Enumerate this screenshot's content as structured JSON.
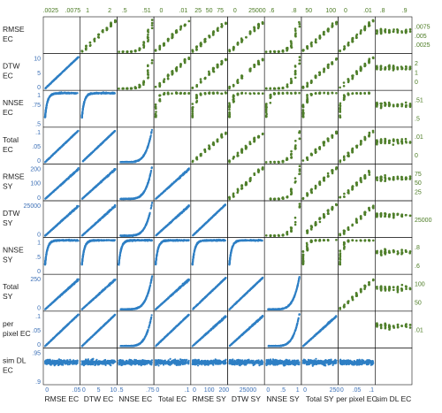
{
  "colors": {
    "lower": "#2e7fc4",
    "upper": "#4f7f2a",
    "diagonal": "#ffffff",
    "frame": "#111111"
  },
  "chart_data": {
    "type": "scatter-matrix",
    "variables": [
      {
        "key": "rmse_ec",
        "row_label": [
          "RMSE",
          "EC"
        ],
        "col_label": "RMSE EC"
      },
      {
        "key": "dtw_ec",
        "row_label": [
          "DTW",
          "EC"
        ],
        "col_label": "DTW EC"
      },
      {
        "key": "nnse_ec",
        "row_label": [
          "NNSE",
          "EC"
        ],
        "col_label": "NNSE EC"
      },
      {
        "key": "total_ec",
        "row_label": [
          "Total",
          "EC"
        ],
        "col_label": "Total EC"
      },
      {
        "key": "rmse_sy",
        "row_label": [
          "RMSE",
          "SY"
        ],
        "col_label": "RMSE SY"
      },
      {
        "key": "dtw_sy",
        "row_label": [
          "DTW",
          "SY"
        ],
        "col_label": "DTW SY"
      },
      {
        "key": "nnse_sy",
        "row_label": [
          "NNSE",
          "SY"
        ],
        "col_label": "NNSE SY"
      },
      {
        "key": "total_sy",
        "row_label": [
          "Total",
          "SY"
        ],
        "col_label": "Total SY"
      },
      {
        "key": "ppx_ec",
        "row_label": [
          "per",
          "pixel EC"
        ],
        "col_label": "per pixel EC"
      },
      {
        "key": "simdl_ec",
        "row_label": [
          "sim DL",
          "EC"
        ],
        "col_label": "sim DL EC"
      }
    ],
    "ranges": {
      "rmse_ec": [
        0,
        0.1
      ],
      "dtw_ec": [
        0,
        11
      ],
      "nnse_ec": [
        0.5,
        1.02
      ],
      "total_ec": [
        0,
        0.11
      ],
      "rmse_sy": [
        0,
        250
      ],
      "dtw_sy": [
        0,
        38000
      ],
      "nnse_sy": [
        0,
        1.05
      ],
      "total_sy": [
        0,
        320
      ],
      "ppx_ec": [
        0,
        0.1
      ],
      "simdl_ec": [
        0.88,
        1.0
      ]
    },
    "top_ticks": [
      {
        "col": 0,
        "labels": [
          ".0025",
          ".0075"
        ]
      },
      {
        "col": 1,
        "labels": [
          "1",
          "2"
        ]
      },
      {
        "col": 2,
        "labels": [
          ".5",
          ".51"
        ]
      },
      {
        "col": 3,
        "labels": [
          "0",
          ".01"
        ]
      },
      {
        "col": 4,
        "labels": [
          "25",
          "50",
          "75"
        ]
      },
      {
        "col": 5,
        "labels": [
          "0",
          "25000"
        ]
      },
      {
        "col": 6,
        "labels": [
          ".6",
          ".8"
        ]
      },
      {
        "col": 7,
        "labels": [
          "50",
          "100"
        ]
      },
      {
        "col": 8,
        "labels": [
          "0",
          ".01"
        ]
      },
      {
        "col": 9,
        "labels": [
          ".8",
          ".9"
        ]
      }
    ],
    "right_ticks": [
      {
        "row": 0,
        "labels": [
          ".0075",
          ".005",
          ".0025"
        ]
      },
      {
        "row": 1,
        "labels": [
          "2",
          "1",
          "0"
        ]
      },
      {
        "row": 2,
        "labels": [
          ".51",
          ".5"
        ]
      },
      {
        "row": 3,
        "labels": [
          ".01",
          "0"
        ]
      },
      {
        "row": 4,
        "labels": [
          "75",
          "50",
          "25"
        ]
      },
      {
        "row": 5,
        "labels": [
          "25000"
        ]
      },
      {
        "row": 6,
        "labels": [
          ".8",
          ".6"
        ]
      },
      {
        "row": 7,
        "labels": [
          "100",
          "50"
        ]
      },
      {
        "row": 8,
        "labels": [
          ".01"
        ]
      },
      {
        "row": 9,
        "labels": []
      }
    ],
    "left_ticks": [
      {
        "row": 1,
        "labels": [
          "10",
          "5",
          "0"
        ]
      },
      {
        "row": 2,
        "labels": [
          "1",
          ".75",
          "",
          ".5"
        ]
      },
      {
        "row": 3,
        "labels": [
          ".1",
          ".05",
          "0"
        ]
      },
      {
        "row": 4,
        "labels": [
          "200",
          "100",
          "0"
        ]
      },
      {
        "row": 5,
        "labels": [
          "25000",
          "0"
        ]
      },
      {
        "row": 6,
        "labels": [
          "1",
          ".5",
          "0"
        ]
      },
      {
        "row": 7,
        "labels": [
          "250",
          "0"
        ]
      },
      {
        "row": 8,
        "labels": [
          ".1",
          ".05",
          "0"
        ]
      },
      {
        "row": 9,
        "labels": [
          ".95",
          ".9"
        ]
      }
    ],
    "bottom_ticks": [
      {
        "col": 0,
        "labels": [
          "0",
          ".05"
        ]
      },
      {
        "col": 1,
        "labels": [
          "0",
          "5",
          "10"
        ]
      },
      {
        "col": 2,
        "labels": [
          ".5",
          ".75"
        ]
      },
      {
        "col": 3,
        "labels": [
          "0",
          ".1"
        ]
      },
      {
        "col": 4,
        "labels": [
          "0",
          "100",
          "200"
        ]
      },
      {
        "col": 5,
        "labels": [
          "25000"
        ]
      },
      {
        "col": 6,
        "labels": [
          "0",
          ".5",
          "1"
        ]
      },
      {
        "col": 7,
        "labels": [
          "0",
          "250"
        ]
      },
      {
        "col": 8,
        "labels": [
          "0",
          ".05",
          ".1"
        ]
      },
      {
        "col": 9,
        "labels": []
      }
    ],
    "grid": false,
    "legend": "none"
  }
}
